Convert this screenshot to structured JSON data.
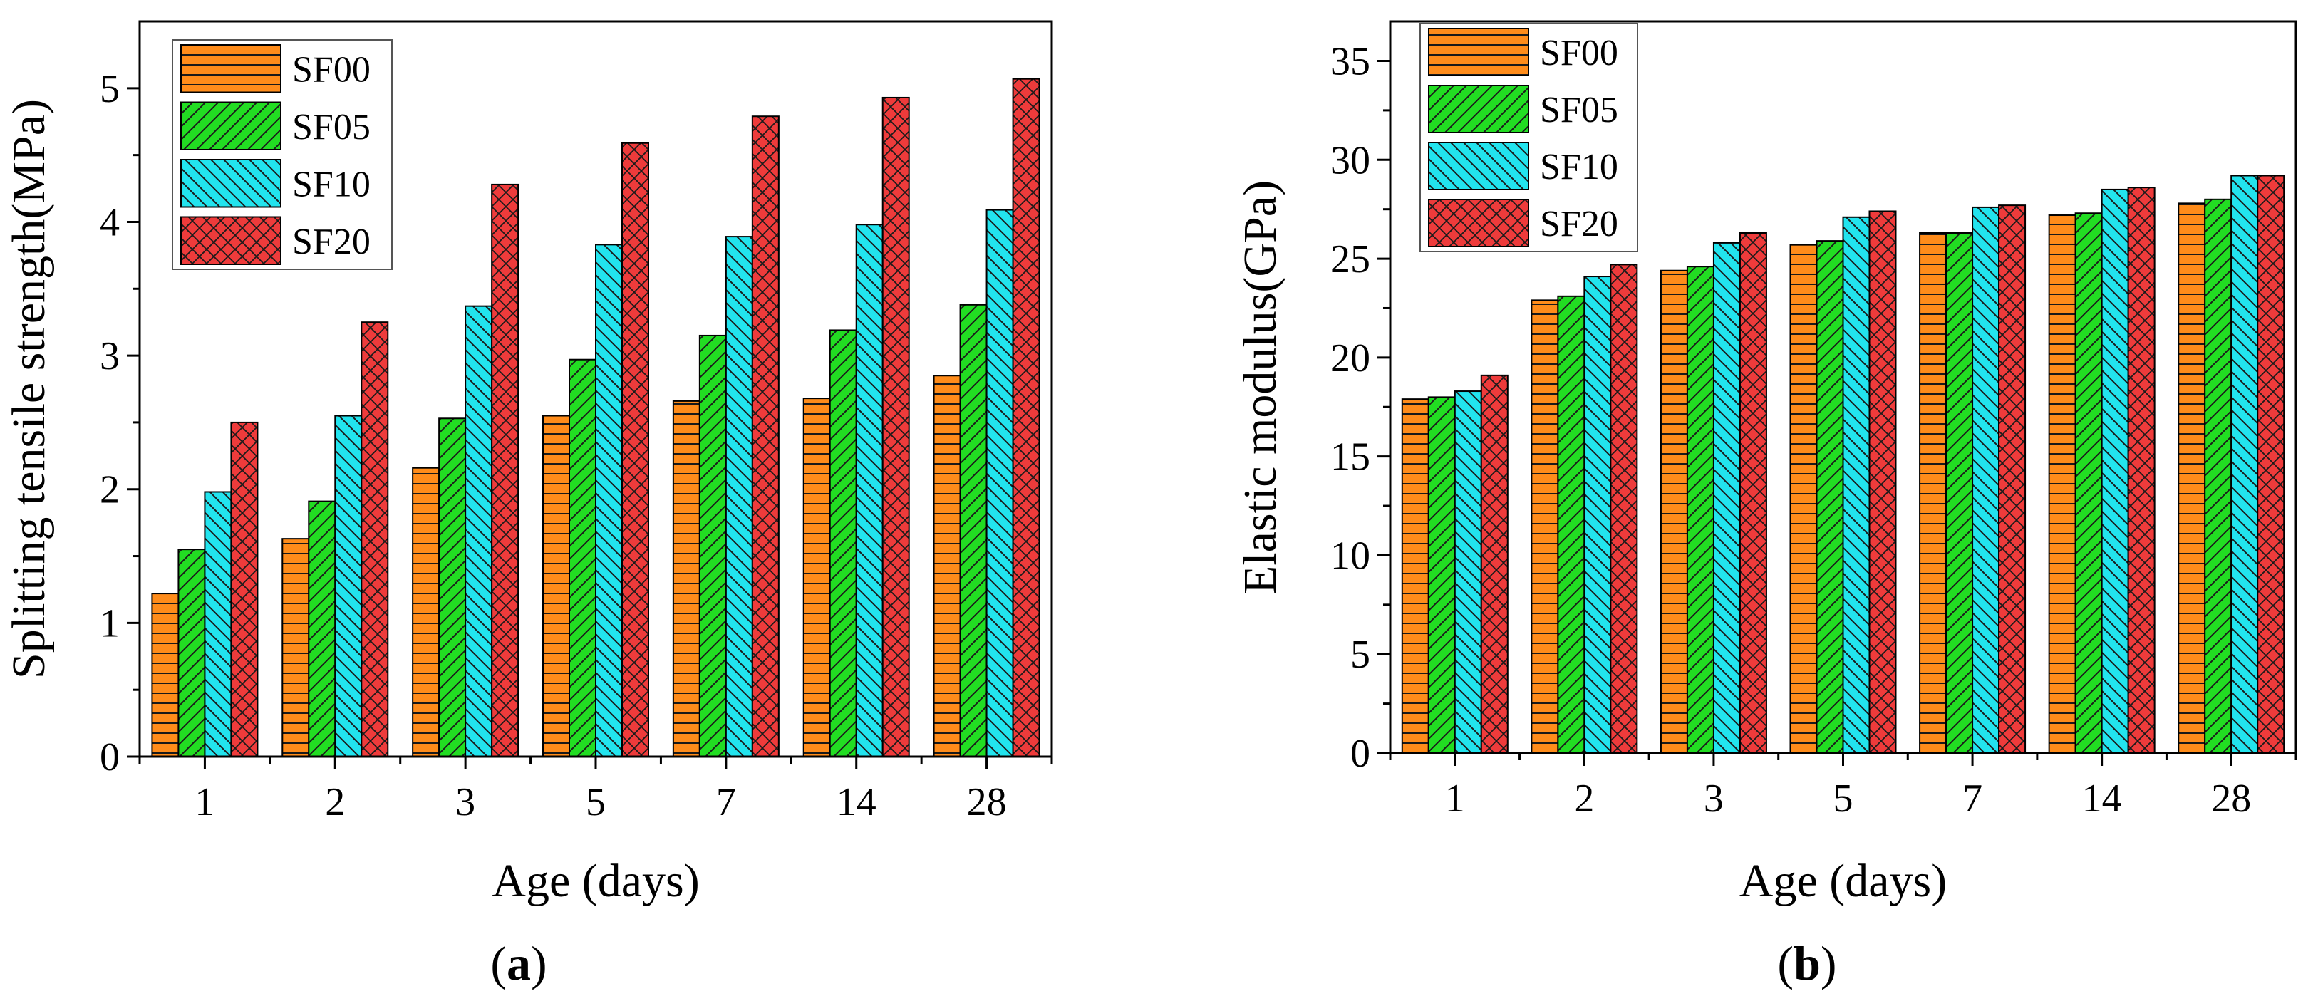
{
  "chart_data": [
    {
      "type": "bar",
      "panel_label": "a",
      "xlabel": "Age (days)",
      "ylabel": "Splitting tensile strength(MPa)",
      "categories": [
        "1",
        "2",
        "3",
        "5",
        "7",
        "14",
        "28"
      ],
      "ylim": [
        0,
        5.5
      ],
      "yticks": [
        0,
        1,
        2,
        3,
        4,
        5
      ],
      "legend_position": "top-left",
      "series": [
        {
          "name": "SF00",
          "values": [
            1.22,
            1.63,
            2.16,
            2.55,
            2.66,
            2.68,
            2.85
          ]
        },
        {
          "name": "SF05",
          "values": [
            1.55,
            1.91,
            2.53,
            2.97,
            3.15,
            3.19,
            3.38
          ]
        },
        {
          "name": "SF10",
          "values": [
            1.98,
            2.55,
            3.37,
            3.83,
            3.89,
            3.98,
            4.09
          ]
        },
        {
          "name": "SF20",
          "values": [
            2.5,
            3.25,
            4.28,
            4.59,
            4.79,
            4.93,
            5.07
          ]
        }
      ]
    },
    {
      "type": "bar",
      "panel_label": "b",
      "xlabel": "Age (days)",
      "ylabel": "Elastic modulus(GPa)",
      "categories": [
        "1",
        "2",
        "3",
        "5",
        "7",
        "14",
        "28"
      ],
      "ylim": [
        0,
        37
      ],
      "yticks": [
        0,
        5,
        10,
        15,
        20,
        25,
        30,
        35
      ],
      "legend_position": "top-left",
      "series": [
        {
          "name": "SF00",
          "values": [
            17.9,
            22.9,
            24.4,
            25.7,
            26.3,
            27.2,
            27.8
          ]
        },
        {
          "name": "SF05",
          "values": [
            18.0,
            23.1,
            24.6,
            25.9,
            26.3,
            27.3,
            28.0
          ]
        },
        {
          "name": "SF10",
          "values": [
            18.3,
            24.1,
            25.8,
            27.1,
            27.6,
            28.5,
            29.2
          ]
        },
        {
          "name": "SF20",
          "values": [
            19.1,
            24.7,
            26.3,
            27.4,
            27.7,
            28.6,
            29.2
          ]
        }
      ]
    }
  ],
  "series_style": [
    {
      "fill": "#ff8c1a",
      "pattern": "horizontal"
    },
    {
      "fill": "#22dd22",
      "pattern": "diagonal-up"
    },
    {
      "fill": "#22e4ee",
      "pattern": "diagonal-down"
    },
    {
      "fill": "#ee3b3b",
      "pattern": "crosshatch"
    }
  ]
}
